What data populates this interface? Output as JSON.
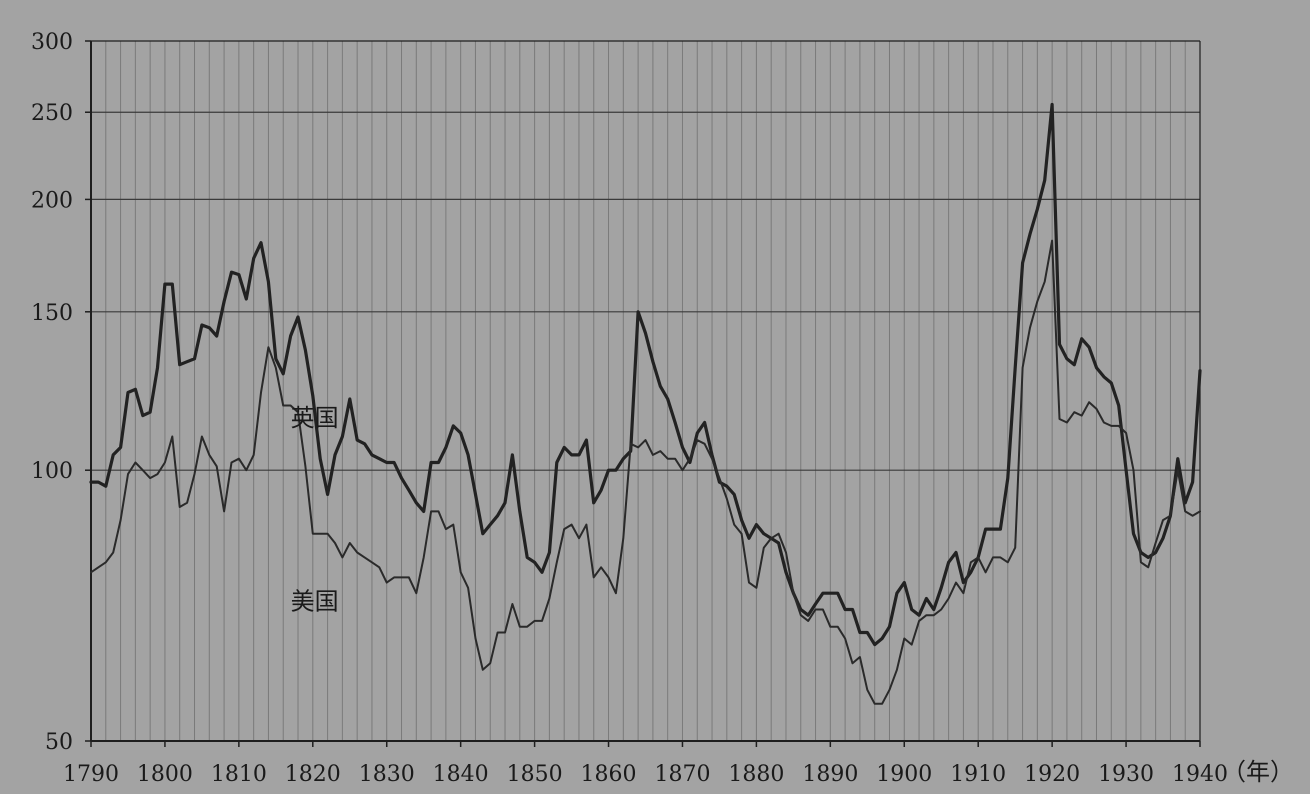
{
  "colors": {
    "background": "#a3a3a3",
    "grid_vertical": "#7a7a7a",
    "grid_horizontal": "#3a3a3a",
    "axis": "#1e1e1e",
    "series_uk": "#222222",
    "series_us": "#2a2a2a"
  },
  "chart_data": {
    "type": "line",
    "title": "",
    "xlabel": "（年）",
    "ylabel": "",
    "xlim": [
      1790,
      1940
    ],
    "ylim": [
      50,
      300
    ],
    "y_scale": "log",
    "yticks": [
      300,
      250,
      200,
      150,
      100,
      50
    ],
    "xticks": [
      1790,
      1800,
      1810,
      1820,
      1830,
      1840,
      1850,
      1860,
      1870,
      1880,
      1890,
      1900,
      1910,
      1920,
      1930,
      1940
    ],
    "grid": {
      "vertical_every": 2,
      "horizontal_at": [
        100,
        150,
        200,
        250
      ]
    },
    "legend": "inline labels",
    "series": [
      {
        "name": "英国",
        "style": "thick",
        "x": [
          1790,
          1791,
          1792,
          1793,
          1794,
          1795,
          1796,
          1797,
          1798,
          1799,
          1800,
          1801,
          1802,
          1803,
          1804,
          1805,
          1806,
          1807,
          1808,
          1809,
          1810,
          1811,
          1812,
          1813,
          1814,
          1815,
          1816,
          1817,
          1818,
          1819,
          1820,
          1821,
          1822,
          1823,
          1824,
          1825,
          1826,
          1827,
          1828,
          1829,
          1830,
          1831,
          1832,
          1833,
          1834,
          1835,
          1836,
          1837,
          1838,
          1839,
          1840,
          1841,
          1842,
          1843,
          1844,
          1845,
          1846,
          1847,
          1848,
          1849,
          1850,
          1851,
          1852,
          1853,
          1854,
          1855,
          1856,
          1857,
          1858,
          1859,
          1860,
          1861,
          1862,
          1863,
          1864,
          1865,
          1866,
          1867,
          1868,
          1869,
          1870,
          1871,
          1872,
          1873,
          1874,
          1875,
          1876,
          1877,
          1878,
          1879,
          1880,
          1881,
          1882,
          1883,
          1884,
          1885,
          1886,
          1887,
          1888,
          1889,
          1890,
          1891,
          1892,
          1893,
          1894,
          1895,
          1896,
          1897,
          1898,
          1899,
          1900,
          1901,
          1902,
          1903,
          1904,
          1905,
          1906,
          1907,
          1908,
          1909,
          1910,
          1911,
          1912,
          1913,
          1914,
          1915,
          1916,
          1917,
          1918,
          1919,
          1920,
          1921,
          1922,
          1923,
          1924,
          1925,
          1926,
          1927,
          1928,
          1929,
          1930,
          1931,
          1932,
          1933,
          1934,
          1935,
          1936,
          1937,
          1938,
          1939,
          1940
        ],
        "values": [
          97,
          97,
          96,
          104,
          106,
          122,
          123,
          115,
          116,
          130,
          161,
          161,
          131,
          132,
          133,
          145,
          144,
          141,
          154,
          166,
          165,
          155,
          172,
          179,
          162,
          133,
          128,
          141,
          148,
          136,
          121,
          103,
          94,
          104,
          109,
          120,
          108,
          107,
          104,
          103,
          102,
          102,
          98,
          95,
          92,
          90,
          102,
          102,
          106,
          112,
          110,
          104,
          94,
          85,
          87,
          89,
          92,
          104,
          90,
          80,
          79,
          77,
          81,
          102,
          106,
          104,
          104,
          108,
          92,
          95,
          100,
          100,
          103,
          105,
          150,
          142,
          132,
          124,
          120,
          113,
          106,
          102,
          110,
          113,
          104,
          97,
          96,
          94,
          88,
          84,
          87,
          85,
          84,
          83,
          77,
          73,
          70,
          69,
          71,
          73,
          73,
          73,
          70,
          70,
          66,
          66,
          64,
          65,
          67,
          73,
          75,
          70,
          69,
          72,
          70,
          74,
          79,
          81,
          75,
          77,
          80,
          86,
          86,
          86,
          98,
          130,
          170,
          183,
          195,
          210,
          255,
          138,
          133,
          131,
          140,
          137,
          130,
          127,
          125,
          118,
          100,
          85,
          81,
          80,
          81,
          84,
          89,
          103,
          92,
          97,
          129
        ]
      },
      {
        "name": "美国",
        "style": "thin",
        "x": [
          1790,
          1791,
          1792,
          1793,
          1794,
          1795,
          1796,
          1797,
          1798,
          1799,
          1800,
          1801,
          1802,
          1803,
          1804,
          1805,
          1806,
          1807,
          1808,
          1809,
          1810,
          1811,
          1812,
          1813,
          1814,
          1815,
          1816,
          1817,
          1818,
          1819,
          1820,
          1821,
          1822,
          1823,
          1824,
          1825,
          1826,
          1827,
          1828,
          1829,
          1830,
          1831,
          1832,
          1833,
          1834,
          1835,
          1836,
          1837,
          1838,
          1839,
          1840,
          1841,
          1842,
          1843,
          1844,
          1845,
          1846,
          1847,
          1848,
          1849,
          1850,
          1851,
          1852,
          1853,
          1854,
          1855,
          1856,
          1857,
          1858,
          1859,
          1860,
          1861,
          1862,
          1863,
          1864,
          1865,
          1866,
          1867,
          1868,
          1869,
          1870,
          1871,
          1872,
          1873,
          1874,
          1875,
          1876,
          1877,
          1878,
          1879,
          1880,
          1881,
          1882,
          1883,
          1884,
          1885,
          1886,
          1887,
          1888,
          1889,
          1890,
          1891,
          1892,
          1893,
          1894,
          1895,
          1896,
          1897,
          1898,
          1899,
          1900,
          1901,
          1902,
          1903,
          1904,
          1905,
          1906,
          1907,
          1908,
          1909,
          1910,
          1911,
          1912,
          1913,
          1914,
          1915,
          1916,
          1917,
          1918,
          1919,
          1920,
          1921,
          1922,
          1923,
          1924,
          1925,
          1926,
          1927,
          1928,
          1929,
          1930,
          1931,
          1932,
          1933,
          1934,
          1935,
          1936,
          1937,
          1938,
          1939,
          1940
        ],
        "values": [
          77,
          78,
          79,
          81,
          88,
          99,
          102,
          100,
          98,
          99,
          102,
          109,
          91,
          92,
          99,
          109,
          104,
          101,
          90,
          102,
          103,
          100,
          104,
          122,
          137,
          130,
          118,
          118,
          116,
          101,
          85,
          85,
          85,
          83,
          80,
          83,
          81,
          80,
          79,
          78,
          75,
          76,
          76,
          76,
          73,
          80,
          90,
          90,
          86,
          87,
          77,
          74,
          65,
          60,
          61,
          66,
          66,
          71,
          67,
          67,
          68,
          68,
          72,
          79,
          86,
          87,
          84,
          87,
          76,
          78,
          76,
          73,
          84,
          107,
          106,
          108,
          104,
          105,
          103,
          103,
          100,
          103,
          108,
          107,
          103,
          98,
          93,
          87,
          85,
          75,
          74,
          82,
          84,
          85,
          81,
          73,
          69,
          68,
          70,
          70,
          67,
          67,
          65,
          61,
          62,
          57,
          55,
          55,
          57,
          60,
          65,
          64,
          68,
          69,
          69,
          70,
          72,
          75,
          73,
          79,
          80,
          77,
          80,
          80,
          79,
          82,
          130,
          144,
          154,
          162,
          180,
          114,
          113,
          116,
          115,
          119,
          117,
          113,
          112,
          112,
          110,
          100,
          79,
          78,
          83,
          88,
          89,
          100,
          90,
          89,
          90
        ]
      }
    ],
    "annotations": [
      {
        "text": "英国",
        "x": 1817,
        "y": 112
      },
      {
        "text": "美国",
        "x": 1817,
        "y": 70
      }
    ]
  }
}
